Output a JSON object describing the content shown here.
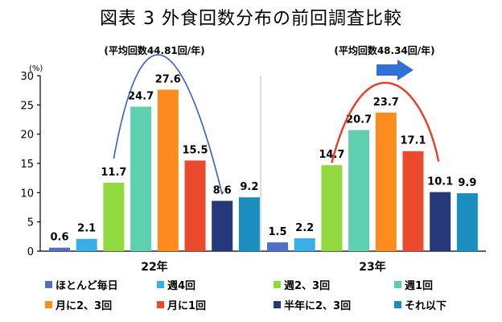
{
  "chart_data": {
    "type": "bar",
    "title": "図表 3 外食回数分布の前回調査比較",
    "unit_label": "(%)",
    "ylim": [
      0,
      30
    ],
    "yticks": [
      0,
      5,
      10,
      15,
      20,
      25,
      30
    ],
    "categories": [
      "22年",
      "23年"
    ],
    "series": [
      {
        "name": "ほとんど毎日",
        "color": "#4f6fc9",
        "values": [
          0.6,
          1.5
        ]
      },
      {
        "name": "週4回",
        "color": "#3aaee8",
        "values": [
          2.1,
          2.2
        ]
      },
      {
        "name": "週2、3回",
        "color": "#92d840",
        "values": [
          11.7,
          14.7
        ]
      },
      {
        "name": "週1回",
        "color": "#5ecfb0",
        "values": [
          24.7,
          20.7
        ]
      },
      {
        "name": "月に2、3回",
        "color": "#fb8c1d",
        "values": [
          27.6,
          23.7
        ]
      },
      {
        "name": "月に1回",
        "color": "#ea4b2d",
        "values": [
          15.5,
          17.1
        ]
      },
      {
        "name": "半年に2、3回",
        "color": "#24387a",
        "values": [
          8.6,
          10.1
        ]
      },
      {
        "name": "それ以下",
        "color": "#1a8fbf",
        "values": [
          9.2,
          9.9
        ]
      }
    ],
    "annotations": [
      "(平均回数44.81回/年)",
      "(平均回数48.34回/年)"
    ],
    "grid": false,
    "legend_position": "bottom",
    "arrow_color": "#2f6fd6",
    "curve_colors": [
      "#3a5ec9",
      "#ea3a2a"
    ]
  }
}
